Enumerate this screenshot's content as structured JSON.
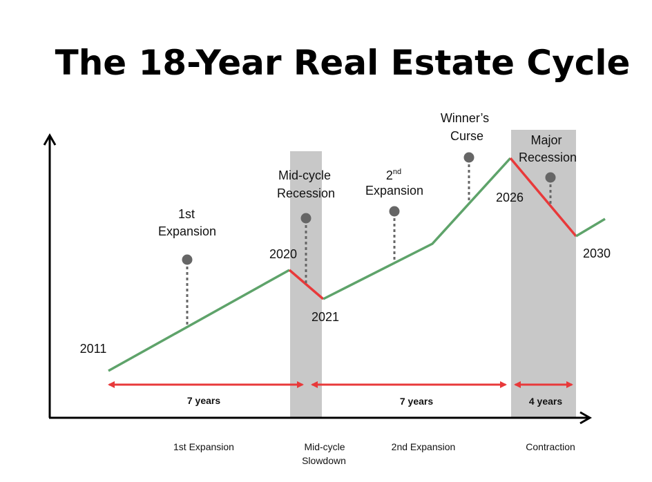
{
  "title": "The 18-Year Real Estate Cycle",
  "colors": {
    "growth": "#5ea36a",
    "decline": "#e8393a",
    "shade": "#c8c8c8",
    "marker": "#666666",
    "axis": "#000000"
  },
  "years": {
    "y2011": "2011",
    "y2020": "2020",
    "y2021": "2021",
    "y2026": "2026",
    "y2030": "2030"
  },
  "annotations": {
    "first_expansion": [
      "1st",
      "Expansion"
    ],
    "midcycle_recession": [
      "Mid-cycle",
      "Recession"
    ],
    "second_expansion": {
      "number": "2",
      "suffix": "nd",
      "word": "Expansion"
    },
    "winners_curse": [
      "Winner’s",
      "Curse"
    ],
    "major_recession": [
      "Major",
      "Recession"
    ]
  },
  "durations": [
    "7 years",
    "7 years",
    "4 years"
  ],
  "phases": {
    "first_expansion": "1st Expansion",
    "midcycle_slowdown": [
      "Mid-cycle",
      "Slowdown"
    ],
    "second_expansion": "2nd Expansion",
    "contraction": "Contraction"
  }
}
